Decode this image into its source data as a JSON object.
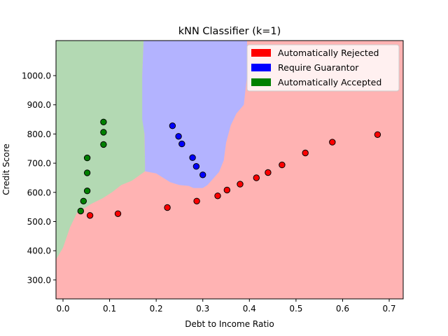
{
  "chart_data": {
    "type": "scatter",
    "title": "kNN Classifier (k=1)",
    "xlabel": "Debt to Income Ratio",
    "ylabel": "Credit Score",
    "xlim": [
      -0.015,
      0.73
    ],
    "ylim": [
      235,
      1120
    ],
    "xticks": [
      0.0,
      0.1,
      0.2,
      0.3,
      0.4,
      0.5,
      0.6,
      0.7
    ],
    "xtick_labels": [
      "0.0",
      "0.1",
      "0.2",
      "0.3",
      "0.4",
      "0.5",
      "0.6",
      "0.7"
    ],
    "yticks": [
      300,
      400,
      500,
      600,
      700,
      800,
      900,
      1000
    ],
    "ytick_labels": [
      "300.0",
      "400.0",
      "500.0",
      "600.0",
      "700.0",
      "800.0",
      "900.0",
      "1000.0"
    ],
    "grid": false,
    "legend_position": "top-right",
    "legend": [
      {
        "label": "Automatically Rejected",
        "color": "#ff0000"
      },
      {
        "label": "Require Guarantor",
        "color": "#0000ff"
      },
      {
        "label": "Automatically Accepted",
        "color": "#008000"
      }
    ],
    "regions": [
      {
        "class": "Automatically Accepted",
        "color": "#b3d9b3",
        "polygon": [
          [
            -0.015,
            1120
          ],
          [
            0.173,
            1120
          ],
          [
            0.17,
            1000
          ],
          [
            0.173,
            900
          ],
          [
            0.176,
            700
          ],
          [
            0.176,
            672
          ],
          [
            0.148,
            640
          ],
          [
            0.125,
            625
          ],
          [
            0.105,
            600
          ],
          [
            0.085,
            580
          ],
          [
            0.06,
            560
          ],
          [
            0.03,
            530
          ],
          [
            0.015,
            480
          ],
          [
            0.0,
            410
          ],
          [
            -0.015,
            370
          ]
        ]
      },
      {
        "class": "Require Guarantor",
        "color": "#b3b3ff",
        "polygon": [
          [
            0.173,
            1120
          ],
          [
            0.395,
            1120
          ],
          [
            0.395,
            1000
          ],
          [
            0.388,
            900
          ],
          [
            0.372,
            870
          ],
          [
            0.36,
            830
          ],
          [
            0.35,
            770
          ],
          [
            0.345,
            710
          ],
          [
            0.335,
            670
          ],
          [
            0.31,
            625
          ],
          [
            0.3,
            615
          ],
          [
            0.28,
            615
          ],
          [
            0.27,
            622
          ],
          [
            0.25,
            625
          ],
          [
            0.23,
            635
          ],
          [
            0.215,
            650
          ],
          [
            0.2,
            665
          ],
          [
            0.176,
            672
          ],
          [
            0.176,
            700
          ],
          [
            0.175,
            800
          ],
          [
            0.17,
            850
          ],
          [
            0.17,
            1000
          ]
        ]
      }
    ],
    "background_region": {
      "class": "Automatically Rejected",
      "color": "#ffb3b3"
    },
    "series": [
      {
        "name": "Automatically Rejected",
        "color": "#ff0000",
        "points": [
          [
            0.058,
            521
          ],
          [
            0.118,
            527
          ],
          [
            0.224,
            548
          ],
          [
            0.287,
            570
          ],
          [
            0.332,
            588
          ],
          [
            0.352,
            608
          ],
          [
            0.38,
            628
          ],
          [
            0.415,
            650
          ],
          [
            0.44,
            668
          ],
          [
            0.47,
            694
          ],
          [
            0.52,
            735
          ],
          [
            0.578,
            772
          ],
          [
            0.675,
            798
          ]
        ]
      },
      {
        "name": "Require Guarantor",
        "color": "#0000ff",
        "points": [
          [
            0.235,
            828
          ],
          [
            0.248,
            792
          ],
          [
            0.255,
            766
          ],
          [
            0.278,
            719
          ],
          [
            0.286,
            689
          ],
          [
            0.3,
            660
          ]
        ]
      },
      {
        "name": "Automatically Accepted",
        "color": "#008000",
        "points": [
          [
            0.038,
            536
          ],
          [
            0.044,
            570
          ],
          [
            0.052,
            605
          ],
          [
            0.052,
            667
          ],
          [
            0.052,
            718
          ],
          [
            0.087,
            764
          ],
          [
            0.087,
            806
          ],
          [
            0.087,
            841
          ]
        ]
      }
    ]
  }
}
